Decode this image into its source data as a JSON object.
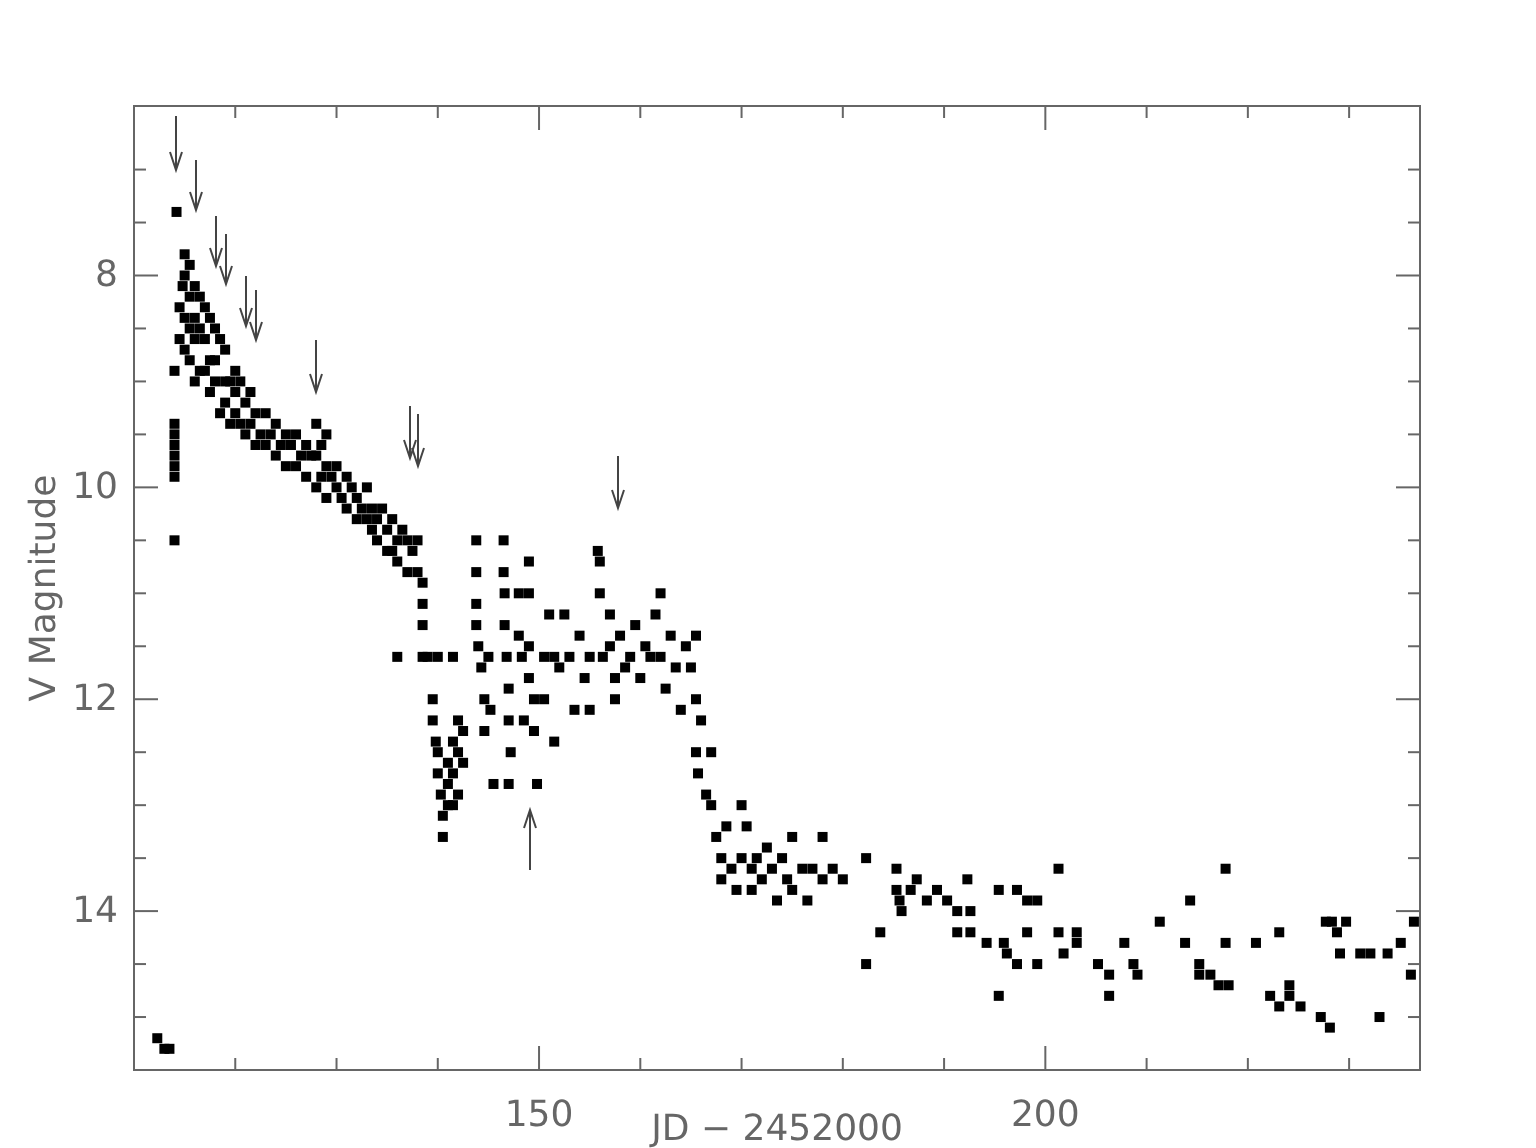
{
  "chart_data": {
    "type": "scatter",
    "xlabel": "JD − 2452000",
    "ylabel": "V Magnitude",
    "xlim": [
      110,
      237
    ],
    "ylim": [
      15.5,
      6.4
    ],
    "xticks": [
      {
        "value": 120,
        "label": null
      },
      {
        "value": 130,
        "label": null
      },
      {
        "value": 140,
        "label": null
      },
      150,
      {
        "value": 160,
        "label": null
      },
      {
        "value": 170,
        "label": null
      },
      {
        "value": 180,
        "label": null
      },
      {
        "value": 190,
        "label": null
      },
      200,
      {
        "value": 210,
        "label": null
      },
      {
        "value": 220,
        "label": null
      },
      {
        "value": 230,
        "label": null
      }
    ],
    "yticks": [
      {
        "value": 7,
        "label": null
      },
      {
        "value": 7.5,
        "label": null
      },
      8,
      {
        "value": 8.5,
        "label": null
      },
      {
        "value": 9,
        "label": null
      },
      {
        "value": 9.5,
        "label": null
      },
      10,
      {
        "value": 10.5,
        "label": null
      },
      {
        "value": 11,
        "label": null
      },
      {
        "value": 11.5,
        "label": null
      },
      12,
      {
        "value": 12.5,
        "label": null
      },
      {
        "value": 13,
        "label": null
      },
      {
        "value": 13.5,
        "label": null
      },
      14,
      {
        "value": 14.5,
        "label": null
      },
      {
        "value": 15,
        "label": null
      }
    ],
    "marker": "square",
    "grid": false,
    "series": [
      {
        "color": "#000000",
        "x": [
          112.3,
          113,
          113.5,
          114,
          114,
          114,
          114,
          114,
          114,
          114,
          114,
          114.2,
          114.5,
          114.5,
          114.8,
          115,
          115,
          115,
          115,
          115.5,
          115.5,
          115.5,
          115.5,
          116,
          116,
          116,
          116,
          116.5,
          116.5,
          116.5,
          117,
          117,
          117,
          117.5,
          117.5,
          117.5,
          118,
          118,
          118,
          118.5,
          118.5,
          119,
          119,
          119,
          119.5,
          119.5,
          120,
          120,
          120,
          120.5,
          120.5,
          121,
          121,
          121.5,
          121.5,
          122,
          122,
          122.5,
          123,
          123,
          123.5,
          124,
          124,
          124.5,
          125,
          125,
          125.5,
          126,
          126,
          126.5,
          127,
          127,
          127.5,
          128,
          128,
          128,
          128.5,
          128.5,
          129,
          129,
          129,
          129.5,
          130,
          130,
          130.5,
          131,
          131,
          131.5,
          132,
          132,
          132.5,
          133,
          133,
          133.5,
          133.5,
          134,
          134,
          134.5,
          135,
          135,
          135.5,
          135.5,
          136,
          136,
          136.5,
          137,
          137,
          137.5,
          138,
          138,
          138.5,
          138.5,
          138.5,
          136,
          138.5,
          139,
          139.5,
          139.5,
          139.8,
          140,
          140,
          140.3,
          140.5,
          140.5,
          141,
          141,
          141,
          141.5,
          141.5,
          141.5,
          142,
          142,
          142,
          142.5,
          142.5,
          141.5,
          140,
          143.8,
          143.8,
          143.8,
          143.8,
          144,
          144.3,
          144.6,
          144.6,
          145,
          145.2,
          145.5,
          146.5,
          146.5,
          146.6,
          146.6,
          146.8,
          147,
          147,
          147.2,
          147,
          148,
          148,
          148.3,
          148.5,
          149,
          149,
          149,
          149,
          149.5,
          149.5,
          149.8,
          150.5,
          150.5,
          151,
          151.5,
          151.5,
          152,
          152.5,
          153,
          153.5,
          154,
          154.5,
          155,
          155,
          155.8,
          156,
          156,
          156.3,
          157,
          157,
          157.5,
          157.5,
          158,
          158.5,
          159,
          159.5,
          160,
          160.5,
          161,
          161.5,
          162,
          162,
          162.5,
          163,
          163.5,
          164,
          164.5,
          165,
          165.5,
          165.5,
          165.5,
          165.7,
          166,
          166.5,
          167,
          167,
          167.5,
          168,
          168,
          168.5,
          169,
          169.5,
          170,
          170,
          170.5,
          171,
          171,
          171.5,
          172,
          172.5,
          173,
          173.5,
          174,
          174.5,
          175,
          175,
          176,
          176.5,
          177,
          178,
          178,
          179,
          180,
          182.3,
          182.3,
          183.7,
          185.3,
          185.3,
          185.6,
          185.8,
          186.7,
          187.3,
          188.3,
          189.3,
          190.3,
          191.3,
          191.3,
          192.3,
          192.6,
          192.6,
          194.2,
          195.4,
          195.4,
          195.9,
          196.2,
          197.2,
          197.2,
          198.2,
          198.2,
          199.2,
          199.2,
          201.3,
          201.3,
          201.8,
          203.1,
          203.1,
          205.2,
          206.3,
          206.3,
          207.8,
          208.7,
          209.1,
          211.3,
          213.8,
          214.3,
          215.2,
          215.2,
          216.3,
          217.1,
          217.8,
          217.8,
          218.1,
          220.8,
          222.2,
          223.1,
          223.1,
          224.1,
          224.1,
          225.2,
          227.2,
          227.7,
          228.1,
          228.3,
          228.8,
          229.1,
          229.7,
          231.1,
          232.1,
          233,
          233.8,
          235.1,
          236.1,
          236.4
        ],
        "values": [
          15.2,
          15.3,
          15.3,
          10.5,
          9.9,
          9.8,
          9.7,
          9.6,
          9.5,
          9.4,
          8.9,
          7.4,
          8.6,
          8.3,
          8.1,
          7.8,
          8,
          8.4,
          8.7,
          7.9,
          8.2,
          8.5,
          8.8,
          8.1,
          8.4,
          8.6,
          9,
          8.2,
          8.5,
          8.9,
          8.3,
          8.6,
          8.9,
          8.4,
          8.8,
          9.1,
          8.5,
          8.8,
          9,
          8.6,
          9.3,
          8.7,
          9,
          9.2,
          9,
          9.4,
          8.9,
          9.1,
          9.3,
          9,
          9.4,
          9.2,
          9.5,
          9.1,
          9.4,
          9.3,
          9.6,
          9.5,
          9.3,
          9.6,
          9.5,
          9.4,
          9.7,
          9.6,
          9.5,
          9.8,
          9.6,
          9.5,
          9.8,
          9.7,
          9.6,
          9.9,
          9.7,
          9.4,
          9.7,
          10,
          9.6,
          9.9,
          9.5,
          9.8,
          10.1,
          9.9,
          9.8,
          10,
          10.1,
          9.9,
          10.2,
          10,
          10.1,
          10.3,
          10.2,
          10,
          10.3,
          10.2,
          10.4,
          10.3,
          10.5,
          10.2,
          10.4,
          10.6,
          10.3,
          10.6,
          10.5,
          10.7,
          10.4,
          10.5,
          10.8,
          10.6,
          10.5,
          10.8,
          10.9,
          11.1,
          11.3,
          11.6,
          11.6,
          11.6,
          12,
          12.2,
          12.4,
          12.5,
          12.7,
          12.9,
          13.1,
          13.3,
          12.6,
          12.8,
          13,
          12.4,
          12.7,
          13,
          12.2,
          12.5,
          12.9,
          12.3,
          12.6,
          11.6,
          11.6,
          10.5,
          10.8,
          11.1,
          11.3,
          11.5,
          11.7,
          12,
          12.3,
          11.6,
          12.1,
          12.8,
          10.5,
          10.8,
          11,
          11.3,
          11.6,
          11.9,
          12.2,
          12.5,
          12.8,
          11,
          11.4,
          11.6,
          12.2,
          10.7,
          11,
          11.5,
          11.8,
          12,
          12.3,
          12.8,
          11.6,
          12,
          11.2,
          11.6,
          12.4,
          11.7,
          11.2,
          11.6,
          12.1,
          11.4,
          11.8,
          11.6,
          12.1,
          10.6,
          10.7,
          11,
          11.6,
          11.2,
          11.5,
          11.8,
          12,
          11.4,
          11.7,
          11.6,
          11.3,
          11.8,
          11.5,
          11.6,
          11.2,
          11,
          11.6,
          11.9,
          11.4,
          11.7,
          12.1,
          11.5,
          11.7,
          11.4,
          12,
          12.5,
          12.7,
          12.2,
          12.9,
          12.5,
          13,
          13.3,
          13.5,
          13.7,
          13.2,
          13.6,
          13.8,
          13,
          13.5,
          13.2,
          13.6,
          13.8,
          13.5,
          13.7,
          13.4,
          13.6,
          13.9,
          13.5,
          13.7,
          13.3,
          13.8,
          13.6,
          13.9,
          13.6,
          13.3,
          13.7,
          13.6,
          13.7,
          13.5,
          14.5,
          14.2,
          13.6,
          13.8,
          13.9,
          14,
          13.8,
          13.7,
          13.9,
          13.8,
          13.9,
          14,
          14.2,
          13.7,
          14,
          14.2,
          14.3,
          13.8,
          14.8,
          14.3,
          14.4,
          13.8,
          14.5,
          13.9,
          14.2,
          14.5,
          13.9,
          13.6,
          14.2,
          14.4,
          14.3,
          14.2,
          14.5,
          14.6,
          14.8,
          14.3,
          14.5,
          14.6,
          14.1,
          14.3,
          13.9,
          14.6,
          14.5,
          14.6,
          14.7,
          13.6,
          14.3,
          14.7,
          14.3,
          14.8,
          14.2,
          14.9,
          14.7,
          14.8,
          14.9,
          15,
          14.1,
          15.1,
          14.1,
          14.2,
          14.4,
          14.1,
          14.4,
          14.4,
          15,
          14.4,
          14.3,
          14.6,
          14.1
        ]
      }
    ]
  }
}
